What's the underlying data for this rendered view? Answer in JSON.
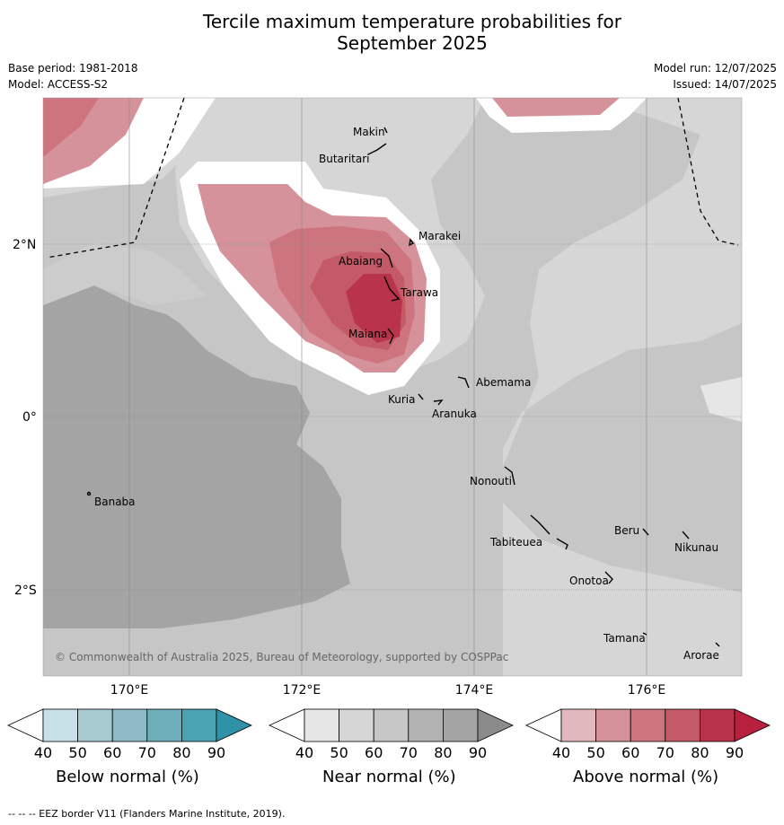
{
  "title_line1": "Tercile maximum temperature probabilities for",
  "title_line2": "September 2025",
  "base_period": "Base period: 1981-2018",
  "model": "Model: ACCESS-S2",
  "model_run": "Model run: 12/07/2025",
  "issued": "Issued: 14/07/2025",
  "lat_labels": [
    "2°N",
    "0°",
    "2°S"
  ],
  "lon_labels": [
    "170°E",
    "172°E",
    "174°E",
    "176°E"
  ],
  "copyright": "© Commonwealth of Australia 2025, Bureau of Meteorology, supported by COSPPac",
  "places": [
    "Makin",
    "Butaritari",
    "Marakei",
    "Abaiang",
    "Tarawa",
    "Maiana",
    "Abemama",
    "Kuria",
    "Aranuka",
    "Nonouti",
    "Banaba",
    "Beru",
    "Nikunau",
    "Tabiteuea",
    "Onotoa",
    "Tamana",
    "Arorae"
  ],
  "legends": [
    {
      "title": "Below normal (%)",
      "ticks": [
        "40",
        "50",
        "60",
        "70",
        "80",
        "90"
      ],
      "colors": [
        "#ffffff",
        "#c8e1e8",
        "#a7c9d0",
        "#8dbac5",
        "#6daeba",
        "#4aa3b3",
        "#2f92a6"
      ]
    },
    {
      "title": "Near normal (%)",
      "ticks": [
        "40",
        "50",
        "60",
        "70",
        "80",
        "90"
      ],
      "colors": [
        "#ffffff",
        "#e6e6e6",
        "#d6d6d6",
        "#c6c6c6",
        "#b3b3b3",
        "#a4a4a4",
        "#8a8a8a"
      ]
    },
    {
      "title": "Above normal (%)",
      "ticks": [
        "40",
        "50",
        "60",
        "70",
        "80",
        "90"
      ],
      "colors": [
        "#ffffff",
        "#e2b8bf",
        "#d6929a",
        "#cd747e",
        "#c45a68",
        "#b9344a",
        "#b8203e"
      ]
    }
  ],
  "footnote": "--  --  -- EEZ border V11 (Flanders Marine Institute, 2019)."
}
